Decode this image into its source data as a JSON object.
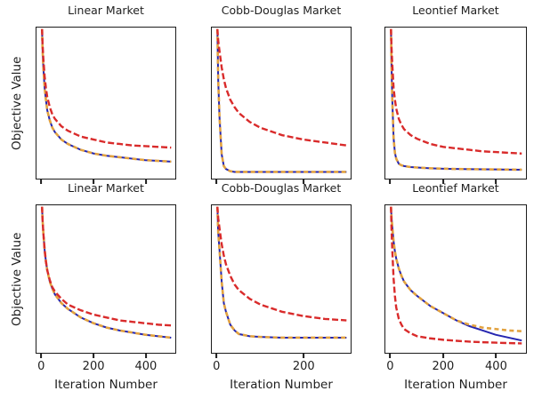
{
  "figure": {
    "background": "#ffffff",
    "text_color": "#1f1f1f",
    "spine_color": "#1c1c1c"
  },
  "colors": {
    "red": "#d92b2b",
    "blue": "#2626b0",
    "orange": "#e2a23f"
  },
  "chart_data": [
    {
      "type": "line",
      "title": "Linear Market",
      "ylabel": "Objective Value",
      "xlabel": null,
      "xlim": [
        0,
        500
      ],
      "ylim": [
        0,
        1
      ],
      "x_ticks": [
        0,
        200,
        400
      ],
      "x_tick_labels_visible": false,
      "grid": false,
      "legend": null,
      "x": [
        0,
        2,
        5,
        10,
        15,
        20,
        30,
        40,
        50,
        75,
        100,
        150,
        200,
        250,
        300,
        350,
        400,
        450,
        500
      ],
      "series": [
        {
          "name": "blue-solid",
          "color": "#2626b0",
          "dash": "",
          "width": 2.0,
          "y": [
            1.0,
            0.86,
            0.74,
            0.6,
            0.52,
            0.45,
            0.38,
            0.33,
            0.3,
            0.25,
            0.22,
            0.18,
            0.155,
            0.14,
            0.13,
            0.12,
            0.11,
            0.105,
            0.1
          ]
        },
        {
          "name": "orange-dashed",
          "color": "#e2a23f",
          "dash": "5,3.5",
          "width": 2.6,
          "y": [
            1.0,
            0.86,
            0.74,
            0.6,
            0.52,
            0.45,
            0.38,
            0.33,
            0.3,
            0.25,
            0.22,
            0.18,
            0.155,
            0.14,
            0.13,
            0.12,
            0.11,
            0.105,
            0.1
          ]
        },
        {
          "name": "red-dashed",
          "color": "#d92b2b",
          "dash": "7,3",
          "width": 2.4,
          "y": [
            1.0,
            0.9,
            0.8,
            0.68,
            0.6,
            0.54,
            0.47,
            0.42,
            0.39,
            0.34,
            0.31,
            0.27,
            0.25,
            0.23,
            0.22,
            0.21,
            0.205,
            0.2,
            0.195
          ]
        }
      ]
    },
    {
      "type": "line",
      "title": "Cobb-Douglas Market",
      "ylabel": null,
      "xlabel": null,
      "xlim": [
        0,
        300
      ],
      "ylim": [
        0,
        1
      ],
      "x_ticks": [
        0,
        200
      ],
      "x_tick_labels_visible": false,
      "grid": false,
      "legend": null,
      "x": [
        0,
        2,
        5,
        10,
        15,
        20,
        30,
        40,
        50,
        75,
        100,
        150,
        200,
        250,
        300
      ],
      "series": [
        {
          "name": "blue-solid",
          "color": "#2626b0",
          "dash": "",
          "width": 2.0,
          "y": [
            1.0,
            0.65,
            0.4,
            0.15,
            0.07,
            0.05,
            0.035,
            0.03,
            0.03,
            0.03,
            0.03,
            0.03,
            0.03,
            0.03,
            0.03
          ]
        },
        {
          "name": "orange-dashed",
          "color": "#e2a23f",
          "dash": "5,3.5",
          "width": 2.6,
          "y": [
            1.0,
            0.65,
            0.4,
            0.15,
            0.07,
            0.05,
            0.035,
            0.03,
            0.03,
            0.03,
            0.03,
            0.03,
            0.03,
            0.03,
            0.03
          ]
        },
        {
          "name": "red-dashed",
          "color": "#d92b2b",
          "dash": "7,3",
          "width": 2.4,
          "y": [
            1.0,
            0.92,
            0.85,
            0.74,
            0.66,
            0.6,
            0.52,
            0.47,
            0.43,
            0.37,
            0.33,
            0.28,
            0.25,
            0.23,
            0.21
          ]
        }
      ]
    },
    {
      "type": "line",
      "title": "Leontief Market",
      "ylabel": null,
      "xlabel": null,
      "xlim": [
        0,
        500
      ],
      "ylim": [
        0,
        1
      ],
      "x_ticks": [
        0,
        200,
        400
      ],
      "x_tick_labels_visible": false,
      "grid": false,
      "legend": null,
      "x": [
        0,
        2,
        5,
        10,
        15,
        20,
        30,
        40,
        50,
        75,
        100,
        150,
        200,
        250,
        300,
        350,
        400,
        450,
        500
      ],
      "series": [
        {
          "name": "blue-solid",
          "color": "#2626b0",
          "dash": "",
          "width": 2.0,
          "y": [
            1.0,
            0.75,
            0.52,
            0.26,
            0.16,
            0.12,
            0.085,
            0.075,
            0.07,
            0.063,
            0.06,
            0.055,
            0.052,
            0.05,
            0.049,
            0.048,
            0.047,
            0.046,
            0.045
          ]
        },
        {
          "name": "orange-dashed",
          "color": "#e2a23f",
          "dash": "5,3.5",
          "width": 2.6,
          "y": [
            1.0,
            0.75,
            0.52,
            0.26,
            0.16,
            0.12,
            0.085,
            0.075,
            0.07,
            0.063,
            0.06,
            0.055,
            0.052,
            0.05,
            0.049,
            0.048,
            0.047,
            0.046,
            0.045
          ]
        },
        {
          "name": "red-dashed",
          "color": "#d92b2b",
          "dash": "7,3",
          "width": 2.4,
          "y": [
            1.0,
            0.88,
            0.76,
            0.6,
            0.52,
            0.46,
            0.39,
            0.35,
            0.32,
            0.28,
            0.255,
            0.22,
            0.2,
            0.19,
            0.18,
            0.17,
            0.165,
            0.16,
            0.155
          ]
        }
      ]
    },
    {
      "type": "line",
      "title": "Linear Market",
      "ylabel": "Objective Value",
      "xlabel": "Iteration Number",
      "xlim": [
        0,
        500
      ],
      "ylim": [
        0,
        1
      ],
      "x_ticks": [
        0,
        200,
        400
      ],
      "x_tick_labels": [
        "0",
        "200",
        "400"
      ],
      "x_tick_labels_visible": true,
      "grid": false,
      "legend": null,
      "x": [
        0,
        2,
        5,
        10,
        15,
        20,
        30,
        40,
        50,
        75,
        100,
        150,
        200,
        250,
        300,
        350,
        400,
        450,
        500
      ],
      "series": [
        {
          "name": "blue-solid",
          "color": "#2626b0",
          "dash": "",
          "width": 2.0,
          "y": [
            1.0,
            0.91,
            0.82,
            0.7,
            0.62,
            0.56,
            0.48,
            0.43,
            0.39,
            0.33,
            0.29,
            0.23,
            0.19,
            0.16,
            0.14,
            0.125,
            0.11,
            0.1,
            0.09
          ]
        },
        {
          "name": "orange-dashed",
          "color": "#e2a23f",
          "dash": "5,3.5",
          "width": 2.6,
          "y": [
            1.0,
            0.91,
            0.82,
            0.7,
            0.62,
            0.56,
            0.48,
            0.43,
            0.39,
            0.33,
            0.29,
            0.23,
            0.19,
            0.16,
            0.14,
            0.125,
            0.11,
            0.1,
            0.09
          ]
        },
        {
          "name": "red-dashed",
          "color": "#d92b2b",
          "dash": "7,3",
          "width": 2.4,
          "y": [
            1.0,
            0.91,
            0.82,
            0.7,
            0.62,
            0.56,
            0.49,
            0.44,
            0.41,
            0.36,
            0.32,
            0.28,
            0.25,
            0.23,
            0.21,
            0.2,
            0.19,
            0.18,
            0.175
          ]
        }
      ]
    },
    {
      "type": "line",
      "title": "Cobb-Douglas Market",
      "ylabel": null,
      "xlabel": "Iteration Number",
      "xlim": [
        0,
        300
      ],
      "ylim": [
        0,
        1
      ],
      "x_ticks": [
        0,
        200
      ],
      "x_tick_labels": [
        "0",
        "200"
      ],
      "x_tick_labels_visible": true,
      "grid": false,
      "legend": null,
      "x": [
        0,
        2,
        5,
        10,
        15,
        20,
        30,
        40,
        50,
        75,
        100,
        150,
        200,
        250,
        300
      ],
      "series": [
        {
          "name": "blue-solid",
          "color": "#2626b0",
          "dash": "",
          "width": 2.0,
          "y": [
            1.0,
            0.82,
            0.7,
            0.48,
            0.33,
            0.27,
            0.18,
            0.14,
            0.115,
            0.1,
            0.095,
            0.09,
            0.09,
            0.09,
            0.09
          ]
        },
        {
          "name": "orange-dashed",
          "color": "#e2a23f",
          "dash": "5,3.5",
          "width": 2.6,
          "y": [
            1.0,
            0.82,
            0.7,
            0.48,
            0.33,
            0.27,
            0.18,
            0.14,
            0.115,
            0.1,
            0.095,
            0.09,
            0.09,
            0.09,
            0.09
          ]
        },
        {
          "name": "red-dashed",
          "color": "#d92b2b",
          "dash": "7,3",
          "width": 2.4,
          "y": [
            1.0,
            0.92,
            0.85,
            0.74,
            0.66,
            0.6,
            0.52,
            0.46,
            0.42,
            0.36,
            0.32,
            0.27,
            0.24,
            0.22,
            0.21
          ]
        }
      ]
    },
    {
      "type": "line",
      "title": "Leontief Market",
      "ylabel": null,
      "xlabel": "Iteration Number",
      "xlim": [
        0,
        500
      ],
      "ylim": [
        0,
        1
      ],
      "x_ticks": [
        0,
        200,
        400
      ],
      "x_tick_labels": [
        "0",
        "200",
        "400"
      ],
      "x_tick_labels_visible": true,
      "grid": false,
      "legend": null,
      "x": [
        0,
        2,
        5,
        10,
        15,
        20,
        30,
        40,
        50,
        75,
        100,
        150,
        200,
        250,
        300,
        350,
        400,
        450,
        500
      ],
      "series": [
        {
          "name": "blue-solid",
          "color": "#2626b0",
          "dash": "",
          "width": 2.0,
          "y": [
            1.0,
            0.93,
            0.86,
            0.76,
            0.69,
            0.64,
            0.57,
            0.52,
            0.48,
            0.42,
            0.38,
            0.31,
            0.26,
            0.21,
            0.17,
            0.14,
            0.11,
            0.09,
            0.07
          ]
        },
        {
          "name": "orange-dashed",
          "color": "#e2a23f",
          "dash": "5,3.5",
          "width": 2.6,
          "y": [
            1.0,
            0.93,
            0.86,
            0.76,
            0.69,
            0.64,
            0.57,
            0.52,
            0.48,
            0.42,
            0.38,
            0.31,
            0.26,
            0.21,
            0.18,
            0.16,
            0.15,
            0.14,
            0.135
          ]
        },
        {
          "name": "red-dashed",
          "color": "#d92b2b",
          "dash": "7,3",
          "width": 2.4,
          "y": [
            1.0,
            0.85,
            0.7,
            0.5,
            0.38,
            0.3,
            0.22,
            0.18,
            0.15,
            0.12,
            0.1,
            0.085,
            0.075,
            0.068,
            0.062,
            0.058,
            0.055,
            0.052,
            0.05
          ]
        }
      ]
    }
  ]
}
